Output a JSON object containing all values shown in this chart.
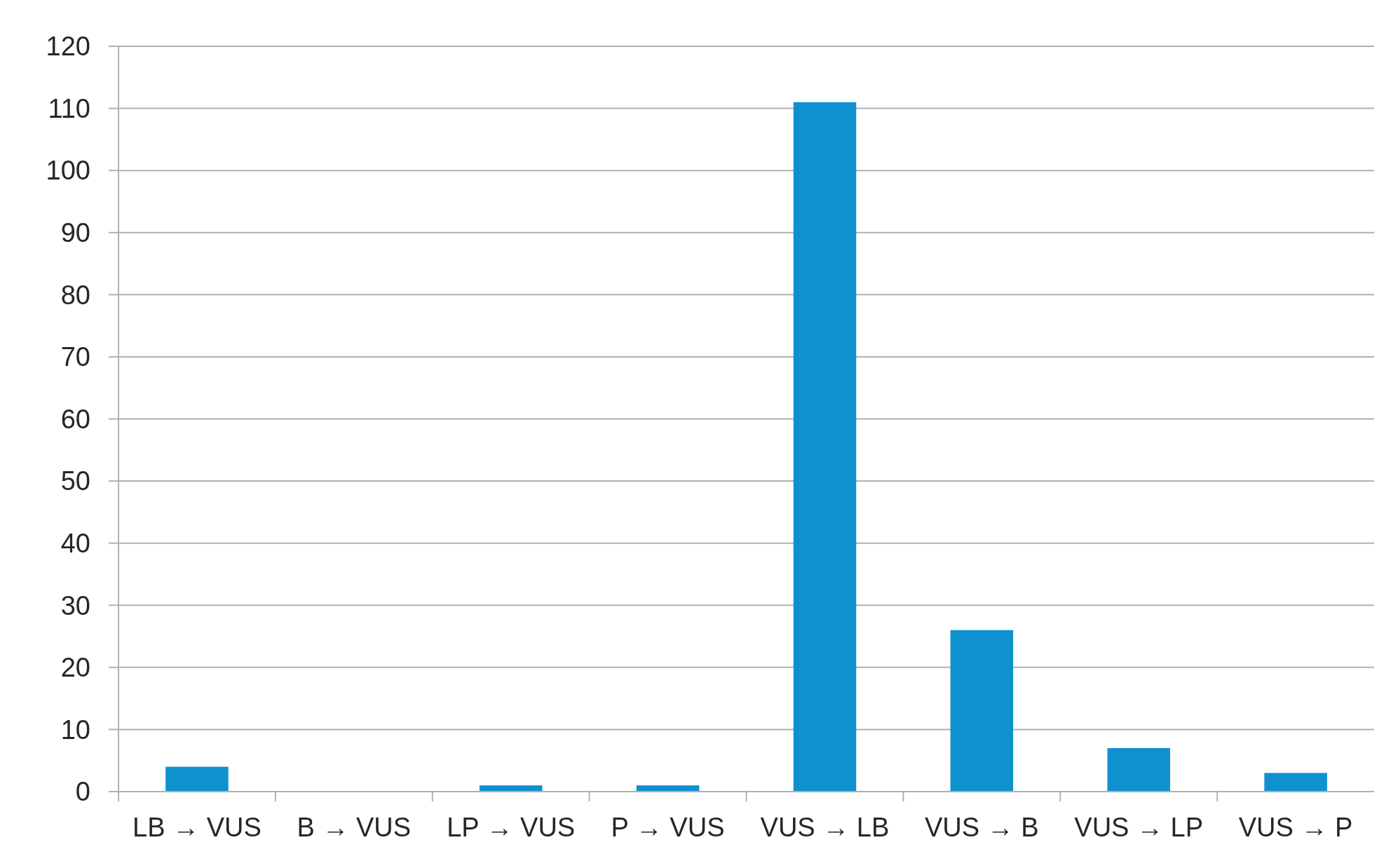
{
  "chart_data": {
    "type": "bar",
    "categories": [
      "LB → VUS",
      "B → VUS",
      "LP → VUS",
      "P → VUS",
      "VUS → LB",
      "VUS → B",
      "VUS → LP",
      "VUS → P"
    ],
    "values": [
      4,
      0,
      1,
      1,
      111,
      26,
      7,
      3
    ],
    "color": "#0f91cf",
    "ylim": [
      0,
      120
    ],
    "yticks": [
      0,
      10,
      20,
      30,
      40,
      50,
      60,
      70,
      80,
      90,
      100,
      110,
      120
    ],
    "grid": "y"
  }
}
